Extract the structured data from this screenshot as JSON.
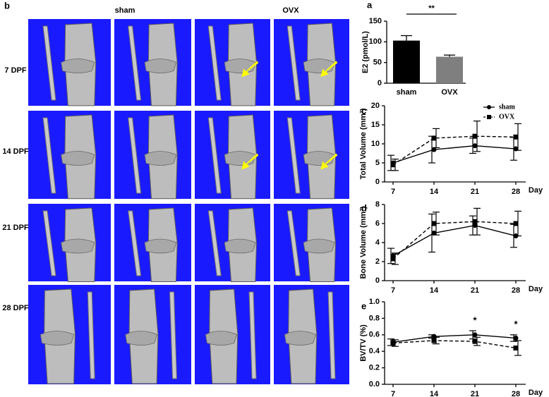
{
  "image_panel": {
    "label": "b",
    "columns": [
      "sham",
      "OVX"
    ],
    "rows": [
      "7 DPF",
      "14 DPF",
      "21 DPF",
      "28 DPF"
    ]
  },
  "chart_data": [
    {
      "type": "bar",
      "label": "a",
      "ylabel": "E2 (pmol/L)",
      "categories": [
        "sham",
        "OVX"
      ],
      "values": [
        103,
        64
      ],
      "errors": [
        12,
        4
      ],
      "colors": [
        "#000000",
        "#7f7f7f"
      ],
      "ylim": [
        0,
        150
      ],
      "yticks": [
        0,
        50,
        100,
        150
      ],
      "annotations": [
        {
          "text": "**"
        }
      ]
    },
    {
      "type": "line",
      "label": "c",
      "ylabel": "Total Volume (mm³)",
      "xlabel": "Day",
      "categories": [
        "7",
        "14",
        "21",
        "28"
      ],
      "ylim": [
        0,
        20
      ],
      "yticks": [
        0,
        5,
        10,
        15,
        20
      ],
      "series": [
        {
          "name": "sham",
          "color": "#000000",
          "marker": "circle",
          "dash": false,
          "values": [
            5,
            8.5,
            9.5,
            8.7
          ],
          "errors": [
            2,
            3.5,
            2,
            3
          ]
        },
        {
          "name": "OVX",
          "color": "#000000",
          "marker": "square",
          "dash": true,
          "values": [
            4.5,
            11.5,
            12,
            11.8
          ],
          "errors": [
            1.5,
            2.5,
            4,
            3.5
          ]
        }
      ]
    },
    {
      "type": "line",
      "label": "d",
      "ylabel": "Bone Volume (mm³)",
      "xlabel": "Day",
      "categories": [
        "7",
        "14",
        "21",
        "28"
      ],
      "ylim": [
        0,
        8
      ],
      "yticks": [
        0,
        2,
        4,
        6,
        8
      ],
      "series": [
        {
          "color": "#000000",
          "marker": "circle",
          "dash": false,
          "values": [
            2.6,
            5,
            5.8,
            4.7
          ],
          "errors": [
            0.8,
            2,
            1,
            1.2
          ]
        },
        {
          "color": "#000000",
          "marker": "square",
          "dash": true,
          "values": [
            2.3,
            6,
            6.2,
            6
          ],
          "errors": [
            0.6,
            1.2,
            1.4,
            1.3
          ]
        }
      ]
    },
    {
      "type": "line",
      "label": "e",
      "ylabel": "BV/TV (%)",
      "xlabel": "Day",
      "categories": [
        "7",
        "14",
        "21",
        "28"
      ],
      "ylim": [
        0,
        1
      ],
      "yticks": [
        {
          "value": 0,
          "label": "0.0"
        },
        0.2,
        0.4,
        0.6,
        0.8,
        {
          "value": 1,
          "label": "1.0"
        }
      ],
      "annotations": [
        {
          "text": "*",
          "x": "21"
        },
        {
          "text": "*",
          "x": "28"
        }
      ],
      "series": [
        {
          "color": "#000000",
          "marker": "circle",
          "dash": false,
          "values": [
            0.51,
            0.58,
            0.6,
            0.56
          ],
          "errors": [
            0.04,
            0.02,
            0.05,
            0.04
          ]
        },
        {
          "color": "#000000",
          "marker": "square",
          "dash": true,
          "values": [
            0.5,
            0.53,
            0.52,
            0.44
          ],
          "errors": [
            0.04,
            0.04,
            0.05,
            0.09
          ]
        }
      ]
    }
  ]
}
